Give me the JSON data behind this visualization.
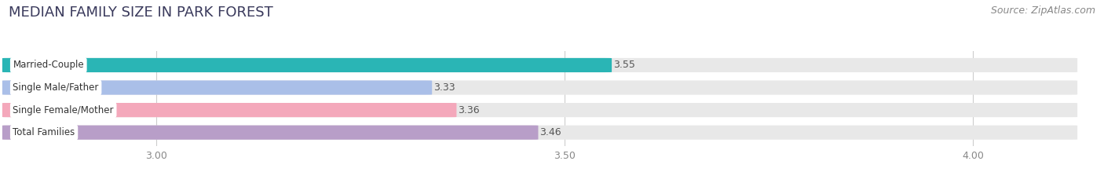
{
  "title": "MEDIAN FAMILY SIZE IN PARK FOREST",
  "source": "Source: ZipAtlas.com",
  "categories": [
    "Total Families",
    "Single Female/Mother",
    "Single Male/Father",
    "Married-Couple"
  ],
  "values": [
    3.46,
    3.36,
    3.33,
    3.55
  ],
  "bar_colors": [
    "#b89ec8",
    "#f4a8bb",
    "#aabfe8",
    "#2ab5b5"
  ],
  "xlim": [
    2.82,
    4.12
  ],
  "xticks": [
    3.0,
    3.5,
    4.0
  ],
  "xtick_labels": [
    "3.00",
    "3.50",
    "4.00"
  ],
  "background_color": "#ffffff",
  "bar_bg_color": "#e8e8e8",
  "title_fontsize": 13,
  "source_fontsize": 9,
  "bar_label_fontsize": 9,
  "tick_fontsize": 9,
  "category_fontsize": 8.5,
  "bar_height": 0.62
}
